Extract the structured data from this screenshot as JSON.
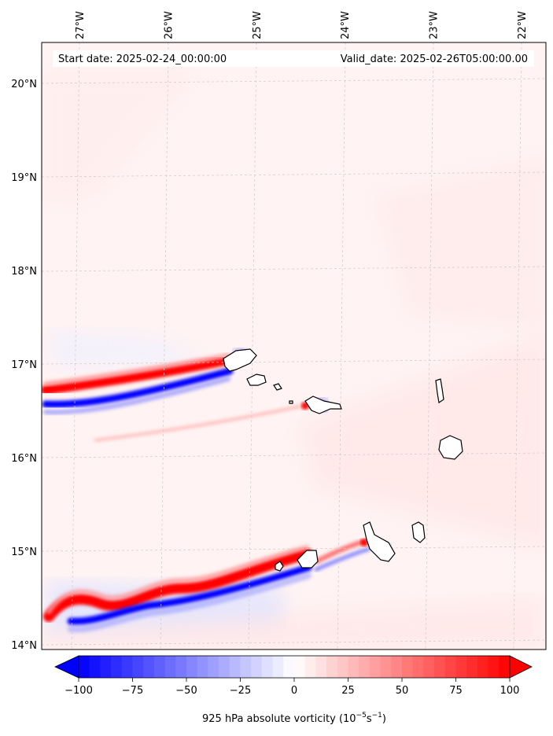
{
  "header": {
    "start_date": "Start date: 2025-02-24_00:00:00",
    "valid_date": "Valid_date: 2025-02-26T05:00:00.00"
  },
  "chart_data": {
    "type": "heatmap",
    "title": "",
    "longitude_labels": [
      "27°W",
      "26°W",
      "25°W",
      "24°W",
      "23°W",
      "22°W"
    ],
    "longitude_values": [
      -27,
      -26,
      -25,
      -24,
      -23,
      -22
    ],
    "latitude_labels": [
      "20°N",
      "19°N",
      "18°N",
      "17°N",
      "16°N",
      "15°N",
      "14°N"
    ],
    "latitude_values": [
      20,
      19,
      18,
      17,
      16,
      15,
      14
    ],
    "colorbar": {
      "label": "925 hPa absolute vorticity (10",
      "label_exp1": "−5",
      "label_mid": "s",
      "label_exp2": "−1",
      "label_end": ")",
      "ticks": [
        "−100",
        "−75",
        "−50",
        "−25",
        "0",
        "25",
        "50",
        "75",
        "100"
      ],
      "tick_values": [
        -100,
        -75,
        -50,
        -25,
        0,
        25,
        50,
        75,
        100
      ],
      "range": [
        -100,
        100
      ],
      "colormap": "bwr",
      "extend": "both"
    },
    "grid": true,
    "colors": {
      "negative": "#0000ff",
      "positive": "#ff0000",
      "neutral": "#ffffff",
      "coastline": "#000000"
    }
  }
}
